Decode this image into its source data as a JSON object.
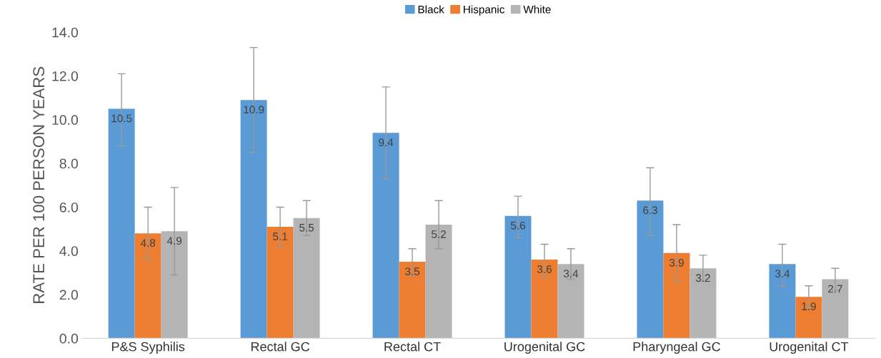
{
  "chart_data": {
    "type": "bar",
    "ylabel": "RATE PER 100 PERSON YEARS",
    "categories": [
      "P&S Syphilis",
      "Rectal GC",
      "Rectal CT",
      "Urogenital GC",
      "Pharyngeal GC",
      "Urogenital CT"
    ],
    "series": [
      {
        "name": "Black",
        "color": "#5b9bd5",
        "values": [
          10.5,
          10.9,
          9.4,
          5.6,
          6.3,
          3.4
        ],
        "errors": [
          [
            8.8,
            12.1
          ],
          [
            8.5,
            13.3
          ],
          [
            7.3,
            11.5
          ],
          [
            4.6,
            6.5
          ],
          [
            4.7,
            7.8
          ],
          [
            2.4,
            4.3
          ]
        ]
      },
      {
        "name": "Hispanic",
        "color": "#ed7d31",
        "values": [
          4.8,
          5.1,
          3.5,
          3.6,
          3.9,
          1.9
        ],
        "errors": [
          [
            3.6,
            6.0
          ],
          [
            4.2,
            6.0
          ],
          [
            2.9,
            4.1
          ],
          [
            2.8,
            4.3
          ],
          [
            2.6,
            5.2
          ],
          [
            1.4,
            2.4
          ]
        ]
      },
      {
        "name": "White",
        "color": "#b4b4b4",
        "values": [
          4.9,
          5.5,
          5.2,
          3.4,
          3.2,
          2.7
        ],
        "errors": [
          [
            2.9,
            6.9
          ],
          [
            4.7,
            6.3
          ],
          [
            4.1,
            6.3
          ],
          [
            2.7,
            4.1
          ],
          [
            2.6,
            3.8
          ],
          [
            2.2,
            3.2
          ]
        ]
      }
    ],
    "ylim": [
      0,
      14
    ],
    "yticks": [
      {
        "value": 0,
        "label": "0.0"
      },
      {
        "value": 2,
        "label": "2.0"
      },
      {
        "value": 4,
        "label": "4.0"
      },
      {
        "value": 6,
        "label": "6.0"
      },
      {
        "value": 8,
        "label": "8.0"
      },
      {
        "value": 10,
        "label": "10.0"
      },
      {
        "value": 12,
        "label": "12.0"
      },
      {
        "value": 14,
        "label": "14.0"
      }
    ],
    "grid": false,
    "legend": "top",
    "data_labels": true
  }
}
